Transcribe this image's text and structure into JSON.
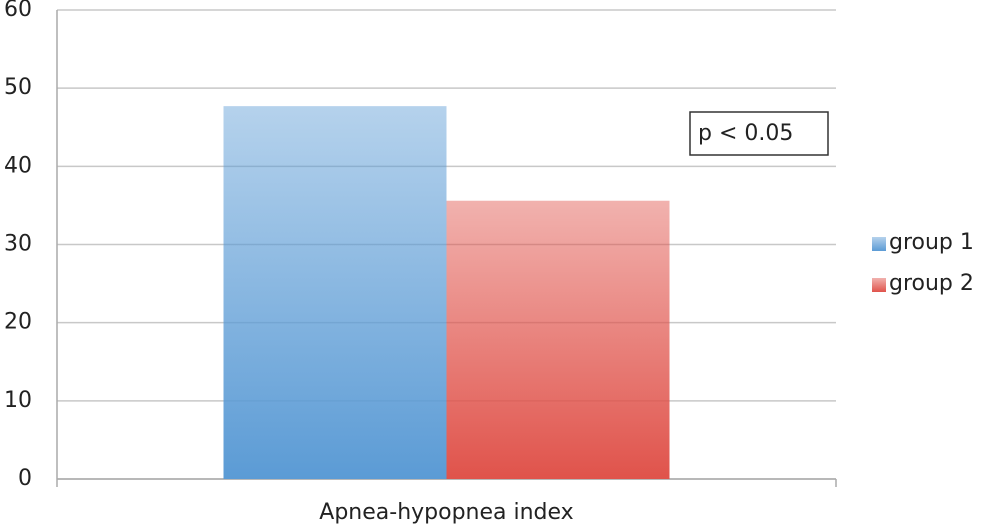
{
  "chart_data": {
    "type": "bar",
    "categories": [
      "Apnea-hypopnea index"
    ],
    "series": [
      {
        "name": "group 1",
        "color": "#5b9bd5",
        "values": [
          47.7
        ]
      },
      {
        "name": "group 2",
        "color": "#e0534b",
        "values": [
          35.6
        ]
      }
    ],
    "ylim": [
      0,
      60
    ],
    "yticks": [
      0,
      10,
      20,
      30,
      40,
      50,
      60
    ],
    "grid": true,
    "annotation": "p < 0.05",
    "legend": "right"
  }
}
